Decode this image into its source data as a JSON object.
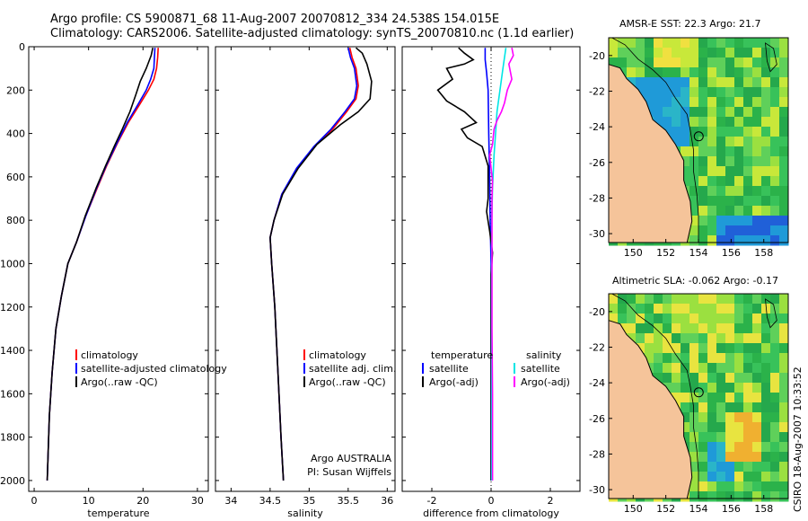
{
  "header": {
    "title_line1": "Argo profile: CS 5900871_68 11-Aug-2007 20070812_334 24.538S 154.015E",
    "title_line2": "Climatology: CARS2006. Satellite-adjusted climatology: synTS_20070810.nc (1.1d earlier)"
  },
  "credit": "CSIRO 18-Aug-2007 10:33:52",
  "colors": {
    "climatology": "#ff0000",
    "satellite": "#0000ff",
    "argo": "#000000",
    "sal_satellite": "#00e5e5",
    "sal_argo": "#ff00ff",
    "land": "#f5c49a"
  },
  "chart_data": [
    {
      "type": "line",
      "xlabel": "temperature",
      "xlim": [
        -1,
        32
      ],
      "ylim": [
        2050,
        0
      ],
      "xticks": [
        0,
        10,
        20,
        30
      ],
      "yticks": [
        0,
        200,
        400,
        600,
        800,
        1000,
        1200,
        1400,
        1600,
        1800,
        2000
      ],
      "legend": [
        "climatology",
        "satellite-adjusted climatology",
        "Argo(..raw -QC)"
      ],
      "series": [
        {
          "name": "climatology",
          "color": "#ff0000",
          "points": [
            [
              22.8,
              5
            ],
            [
              22.7,
              50
            ],
            [
              22.5,
              100
            ],
            [
              22,
              150
            ],
            [
              21,
              200
            ],
            [
              19.3,
              270
            ],
            [
              17.3,
              350
            ],
            [
              15.4,
              440
            ],
            [
              13.3,
              550
            ],
            [
              11.6,
              650
            ],
            [
              9.5,
              780
            ],
            [
              7.8,
              900
            ],
            [
              6.2,
              1000
            ],
            [
              5,
              1150
            ],
            [
              4,
              1300
            ],
            [
              3.3,
              1500
            ],
            [
              2.8,
              1700
            ],
            [
              2.4,
              2000
            ]
          ]
        },
        {
          "name": "satellite-adjusted climatology",
          "color": "#0000ff",
          "points": [
            [
              22.2,
              5
            ],
            [
              22.1,
              50
            ],
            [
              22,
              100
            ],
            [
              21.4,
              150
            ],
            [
              20.6,
              200
            ],
            [
              19,
              270
            ],
            [
              17.1,
              350
            ],
            [
              15.3,
              440
            ],
            [
              13.2,
              550
            ],
            [
              11.5,
              650
            ],
            [
              9.5,
              780
            ],
            [
              7.8,
              900
            ],
            [
              6.2,
              1000
            ],
            [
              5,
              1150
            ],
            [
              4,
              1300
            ],
            [
              3.3,
              1500
            ],
            [
              2.8,
              1700
            ],
            [
              2.4,
              2000
            ]
          ]
        },
        {
          "name": "Argo(..raw -QC)",
          "color": "#000000",
          "points": [
            [
              21.8,
              5
            ],
            [
              21.5,
              40
            ],
            [
              20.6,
              100
            ],
            [
              19.5,
              160
            ],
            [
              18.7,
              220
            ],
            [
              17.6,
              300
            ],
            [
              16.2,
              380
            ],
            [
              14.7,
              460
            ],
            [
              13.1,
              550
            ],
            [
              11.4,
              650
            ],
            [
              9.4,
              780
            ],
            [
              7.8,
              900
            ],
            [
              6.2,
              1000
            ],
            [
              5,
              1150
            ],
            [
              4,
              1300
            ],
            [
              3.3,
              1500
            ],
            [
              2.8,
              1700
            ],
            [
              2.4,
              2000
            ]
          ]
        }
      ]
    },
    {
      "type": "line",
      "xlabel": "salinity",
      "xlim": [
        33.8,
        36.1
      ],
      "ylim": [
        2050,
        0
      ],
      "xticks": [
        34,
        34.5,
        35,
        35.5,
        36
      ],
      "yticks": [
        0,
        200,
        400,
        600,
        800,
        1000,
        1200,
        1400,
        1600,
        1800,
        2000
      ],
      "legend": [
        "climatology",
        "satellite adj. clim.",
        "Argo(..raw -QC)"
      ],
      "annotation": [
        "Argo AUSTRALIA",
        "PI: Susan Wijffels"
      ],
      "series": [
        {
          "name": "climatology",
          "color": "#ff0000",
          "points": [
            [
              35.52,
              5
            ],
            [
              35.55,
              50
            ],
            [
              35.6,
              100
            ],
            [
              35.63,
              180
            ],
            [
              35.6,
              240
            ],
            [
              35.48,
              300
            ],
            [
              35.3,
              380
            ],
            [
              35.07,
              460
            ],
            [
              34.85,
              560
            ],
            [
              34.65,
              680
            ],
            [
              34.55,
              800
            ],
            [
              34.5,
              880
            ],
            [
              34.52,
              1000
            ],
            [
              34.56,
              1200
            ],
            [
              34.6,
              1500
            ],
            [
              34.64,
              1800
            ],
            [
              34.67,
              2000
            ]
          ]
        },
        {
          "name": "satellite adj. clim.",
          "color": "#0000ff",
          "points": [
            [
              35.5,
              5
            ],
            [
              35.53,
              50
            ],
            [
              35.58,
              100
            ],
            [
              35.61,
              180
            ],
            [
              35.58,
              240
            ],
            [
              35.46,
              300
            ],
            [
              35.28,
              380
            ],
            [
              35.06,
              460
            ],
            [
              34.84,
              560
            ],
            [
              34.65,
              680
            ],
            [
              34.55,
              800
            ],
            [
              34.5,
              880
            ],
            [
              34.52,
              1000
            ],
            [
              34.56,
              1200
            ],
            [
              34.6,
              1500
            ],
            [
              34.64,
              1800
            ],
            [
              34.67,
              2000
            ]
          ]
        },
        {
          "name": "Argo(..raw -QC)",
          "color": "#000000",
          "points": [
            [
              35.6,
              5
            ],
            [
              35.68,
              30
            ],
            [
              35.74,
              80
            ],
            [
              35.8,
              160
            ],
            [
              35.78,
              240
            ],
            [
              35.63,
              300
            ],
            [
              35.4,
              360
            ],
            [
              35.1,
              450
            ],
            [
              34.86,
              560
            ],
            [
              34.66,
              680
            ],
            [
              34.55,
              800
            ],
            [
              34.5,
              880
            ],
            [
              34.52,
              1000
            ],
            [
              34.56,
              1200
            ],
            [
              34.6,
              1500
            ],
            [
              34.64,
              1800
            ],
            [
              34.67,
              2000
            ]
          ]
        }
      ]
    },
    {
      "type": "line",
      "xlabel": "difference from climatology",
      "xlim": [
        -3,
        3
      ],
      "ylim": [
        2050,
        0
      ],
      "xticks": [
        -2,
        0,
        2
      ],
      "yticks": [
        0,
        200,
        400,
        600,
        800,
        1000,
        1200,
        1400,
        1600,
        1800,
        2000
      ],
      "legend_left": [
        "temperature",
        "satellite",
        "Argo(-adj)"
      ],
      "legend_right": [
        "salinity",
        "satellite",
        "Argo(-adj)"
      ],
      "series": [
        {
          "name": "temperature satellite",
          "color": "#0000ff",
          "points": [
            [
              -0.2,
              5
            ],
            [
              -0.2,
              60
            ],
            [
              -0.15,
              120
            ],
            [
              -0.1,
              200
            ],
            [
              -0.08,
              400
            ],
            [
              -0.05,
              600
            ],
            [
              -0.03,
              800
            ],
            [
              0,
              1000
            ],
            [
              0,
              2000
            ]
          ]
        },
        {
          "name": "temperature Argo(-adj)",
          "color": "#000000",
          "points": [
            [
              -1.1,
              5
            ],
            [
              -0.9,
              30
            ],
            [
              -0.6,
              60
            ],
            [
              -0.9,
              80
            ],
            [
              -1.5,
              100
            ],
            [
              -1.3,
              150
            ],
            [
              -1.8,
              200
            ],
            [
              -1.5,
              250
            ],
            [
              -0.9,
              300
            ],
            [
              -0.5,
              350
            ],
            [
              -1.0,
              380
            ],
            [
              -0.8,
              420
            ],
            [
              -0.3,
              460
            ],
            [
              -0.1,
              550
            ],
            [
              -0.1,
              620
            ],
            [
              -0.1,
              700
            ],
            [
              -0.15,
              760
            ],
            [
              -0.05,
              850
            ],
            [
              0,
              900
            ],
            [
              0.05,
              950
            ],
            [
              0,
              1050
            ],
            [
              0,
              1200
            ],
            [
              0,
              2000
            ]
          ]
        },
        {
          "name": "salinity satellite",
          "color": "#00e5e5",
          "points": [
            [
              0.5,
              5
            ],
            [
              0.4,
              100
            ],
            [
              0.3,
              200
            ],
            [
              0.2,
              300
            ],
            [
              0.15,
              400
            ],
            [
              0.1,
              500
            ],
            [
              0.05,
              650
            ],
            [
              0.02,
              800
            ],
            [
              0.02,
              1000
            ],
            [
              0.02,
              1300
            ],
            [
              0.02,
              2000
            ]
          ]
        },
        {
          "name": "salinity Argo(-adj)",
          "color": "#ff00ff",
          "points": [
            [
              0.7,
              5
            ],
            [
              0.75,
              40
            ],
            [
              0.6,
              80
            ],
            [
              0.7,
              150
            ],
            [
              0.55,
              200
            ],
            [
              0.45,
              260
            ],
            [
              0.35,
              300
            ],
            [
              0.2,
              340
            ],
            [
              0.1,
              380
            ],
            [
              0.05,
              450
            ],
            [
              -0.05,
              500
            ],
            [
              0,
              560
            ],
            [
              0.05,
              620
            ],
            [
              0.03,
              700
            ],
            [
              0.03,
              800
            ],
            [
              0.03,
              1000
            ],
            [
              0.03,
              1300
            ],
            [
              0.05,
              1600
            ],
            [
              0.05,
              2000
            ]
          ]
        }
      ]
    },
    {
      "type": "heatmap",
      "title": "AMSR-E SST: 22.3 Argo: 21.7",
      "xlim": [
        148.5,
        159.5
      ],
      "ylim": [
        -30.5,
        -19
      ],
      "xticks": [
        150,
        152,
        154,
        156,
        158
      ],
      "yticks": [
        -20,
        -22,
        -24,
        -26,
        -28,
        -30
      ],
      "marker": {
        "lon": 154.015,
        "lat": -24.538
      }
    },
    {
      "type": "heatmap",
      "title": "Altimetric SLA: -0.062 Argo: -0.17",
      "xlim": [
        148.5,
        159.5
      ],
      "ylim": [
        -30.5,
        -19
      ],
      "xticks": [
        150,
        152,
        154,
        156,
        158
      ],
      "yticks": [
        -20,
        -22,
        -24,
        -26,
        -28,
        -30
      ],
      "marker": {
        "lon": 154.015,
        "lat": -24.538
      }
    }
  ]
}
